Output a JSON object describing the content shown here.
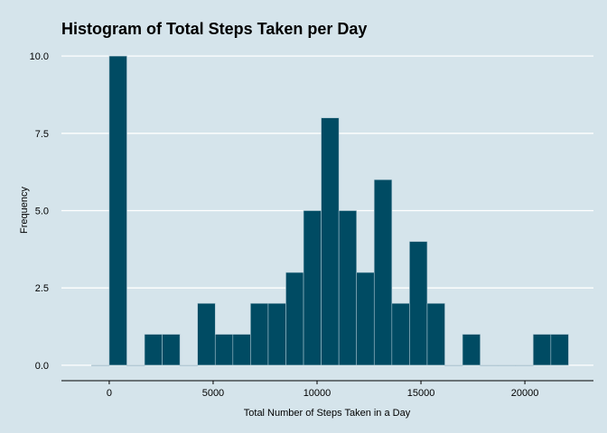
{
  "chart_data": {
    "type": "bar",
    "title": "Histogram of Total Steps Taken per Day",
    "xlabel": "Total Number of Steps Taken in a Day",
    "ylabel": "Frequency",
    "bin_width": 850,
    "bin_centers": [
      -425,
      425,
      1275,
      2125,
      2975,
      3825,
      4675,
      5525,
      6375,
      7225,
      8075,
      8925,
      9775,
      10625,
      11475,
      12325,
      13175,
      14025,
      14875,
      15725,
      16575,
      17425,
      18275,
      19125,
      19975,
      20825,
      21675
    ],
    "values": [
      0,
      10,
      0,
      1,
      1,
      0,
      2,
      1,
      1,
      2,
      2,
      3,
      5,
      8,
      5,
      3,
      6,
      2,
      4,
      2,
      0,
      1,
      0,
      0,
      0,
      1,
      1
    ],
    "xlim": [
      -2300,
      23300
    ],
    "ylim": [
      -0.5,
      10.5
    ],
    "x_ticks": [
      0,
      5000,
      10000,
      15000,
      20000
    ],
    "x_tick_labels": [
      "0",
      "5000",
      "10000",
      "15000",
      "20000"
    ],
    "y_ticks": [
      0,
      2.5,
      5,
      7.5,
      10
    ],
    "y_tick_labels": [
      "0.0",
      "2.5",
      "5.0",
      "7.5",
      "10.0"
    ],
    "grid": true,
    "colors": {
      "background": "#d5e4eb",
      "bar_fill": "#004b63",
      "bar_outline": "#a9c3cf",
      "grid": "#ffffff",
      "axis": "#000000"
    }
  }
}
